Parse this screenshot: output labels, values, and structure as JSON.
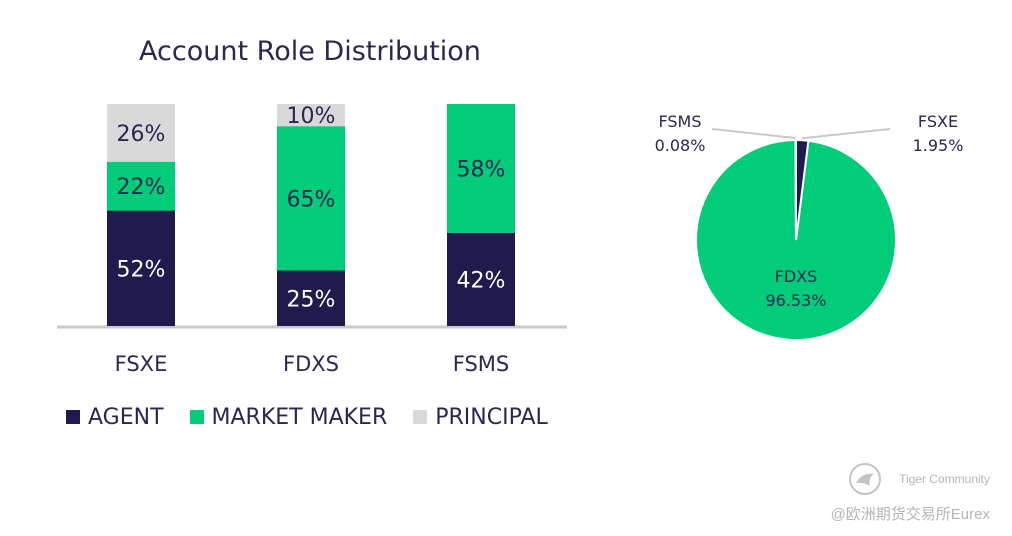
{
  "chart_data": [
    {
      "type": "bar",
      "stacked": true,
      "title": "Account Role Distribution",
      "categories": [
        "FSXE",
        "FDXS",
        "FSMS"
      ],
      "series": [
        {
          "name": "AGENT",
          "color": "#1f1b4d",
          "values": [
            52,
            25,
            42
          ]
        },
        {
          "name": "MARKET MAKER",
          "color": "#00cc7a",
          "values": [
            22,
            65,
            58
          ]
        },
        {
          "name": "PRINCIPAL",
          "color": "#d9d9d9",
          "values": [
            26,
            10,
            0
          ]
        }
      ],
      "data_labels": [
        [
          "52%",
          "25%",
          "42%"
        ],
        [
          "22%",
          "65%",
          "58%"
        ],
        [
          "26%",
          "10%",
          ""
        ]
      ],
      "legend_position": "bottom",
      "grid": false
    },
    {
      "type": "pie",
      "slices": [
        {
          "name": "FDXS",
          "value": 96.53,
          "label": "96.53%",
          "color": "#00cc7a"
        },
        {
          "name": "FSXE",
          "value": 1.95,
          "label": "1.95%",
          "color": "#1f1b4d"
        },
        {
          "name": "FSMS",
          "value": 0.08,
          "label": "0.08%",
          "color": "#1f1b4d"
        }
      ]
    }
  ],
  "watermark": {
    "line1": "Tiger Community",
    "line2": "@欧洲期货交易所Eurex"
  }
}
